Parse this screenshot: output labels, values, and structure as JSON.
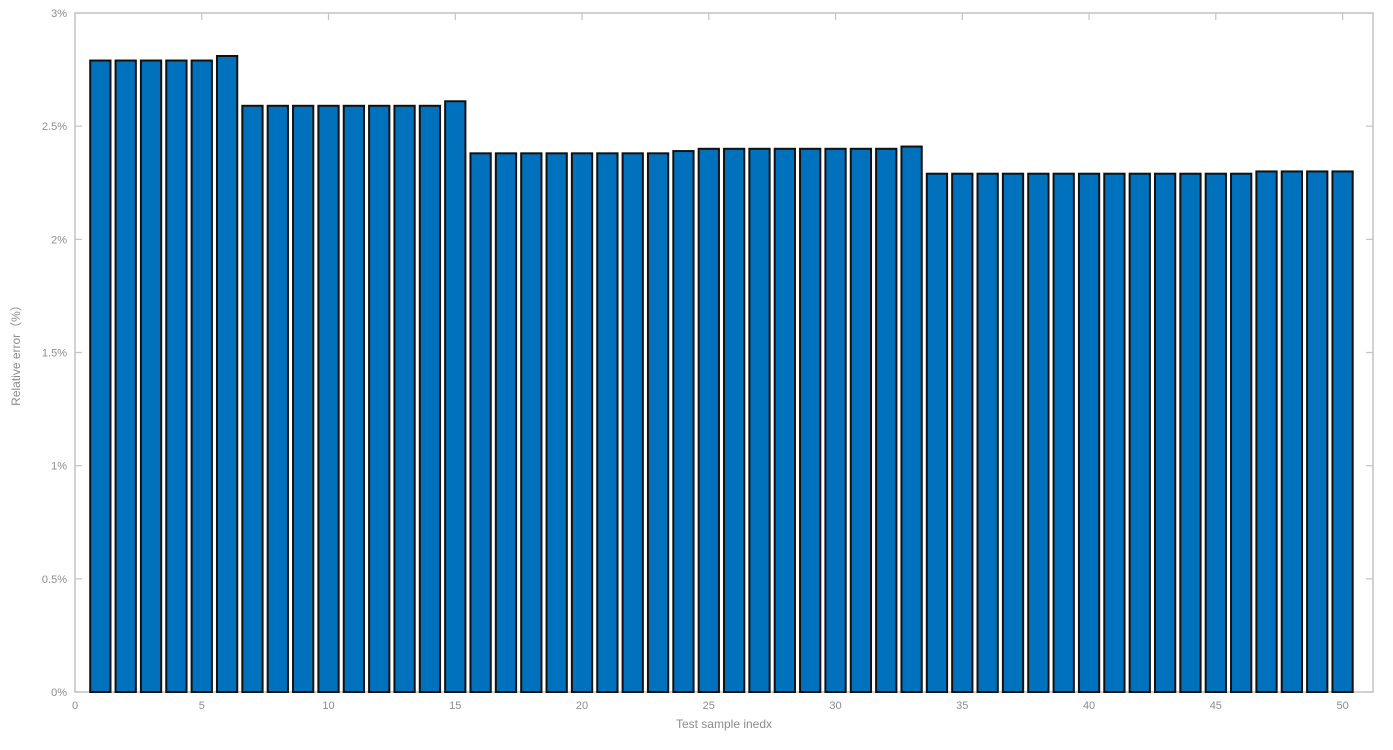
{
  "chart_data": {
    "type": "bar",
    "title": "",
    "xlabel": "Test sample inedx",
    "ylabel": "Relative error（%）",
    "x": [
      1,
      2,
      3,
      4,
      5,
      6,
      7,
      8,
      9,
      10,
      11,
      12,
      13,
      14,
      15,
      16,
      17,
      18,
      19,
      20,
      21,
      22,
      23,
      24,
      25,
      26,
      27,
      28,
      29,
      30,
      31,
      32,
      33,
      34,
      35,
      36,
      37,
      38,
      39,
      40,
      41,
      42,
      43,
      44,
      45,
      46,
      47,
      48,
      49,
      50
    ],
    "values": [
      2.79,
      2.79,
      2.79,
      2.79,
      2.79,
      2.81,
      2.59,
      2.59,
      2.59,
      2.59,
      2.59,
      2.59,
      2.59,
      2.59,
      2.61,
      2.38,
      2.38,
      2.38,
      2.38,
      2.38,
      2.38,
      2.38,
      2.38,
      2.39,
      2.4,
      2.4,
      2.4,
      2.4,
      2.4,
      2.4,
      2.4,
      2.4,
      2.41,
      2.29,
      2.29,
      2.29,
      2.29,
      2.29,
      2.29,
      2.29,
      2.29,
      2.29,
      2.29,
      2.29,
      2.29,
      2.29,
      2.3,
      2.3,
      2.3,
      2.3
    ],
    "ylim": [
      0,
      3
    ],
    "xlim": [
      0,
      51.2
    ],
    "bar_width": 0.8,
    "grid": false,
    "legend": null,
    "yticks": {
      "values": [
        0,
        0.5,
        1,
        1.5,
        2,
        2.5,
        3
      ],
      "labels": [
        "0%",
        "0.5%",
        "1%",
        "1.5%",
        "2%",
        "2.5%",
        "3%"
      ]
    },
    "xticks": {
      "values": [
        0,
        5,
        10,
        15,
        20,
        25,
        30,
        35,
        40,
        45,
        50
      ],
      "labels": [
        "0",
        "5",
        "10",
        "15",
        "20",
        "25",
        "30",
        "35",
        "40",
        "45",
        "50"
      ]
    },
    "colors": {
      "bar_fill": "#0072BD",
      "bar_edge": "#111111",
      "axis_line": "#c3c3c3",
      "tick_label": "#8c8c8c",
      "axis_label": "#8c8c8c",
      "background": "#ffffff"
    }
  }
}
